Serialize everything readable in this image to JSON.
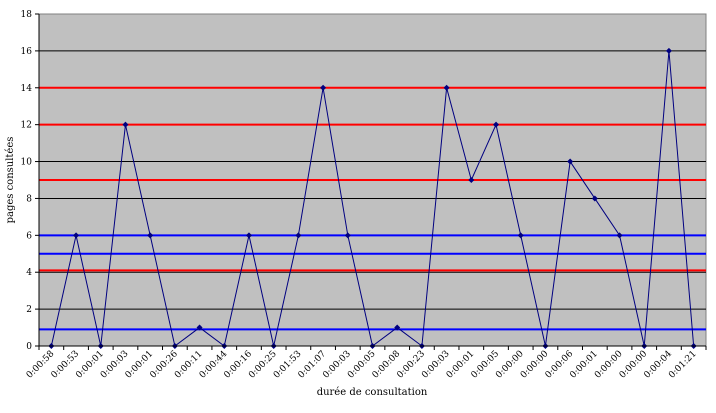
{
  "chart_data": {
    "type": "line",
    "xlabel": "durée de consultation",
    "ylabel": "pages consultées",
    "ylim": [
      0,
      18
    ],
    "yticks": [
      0,
      2,
      4,
      6,
      8,
      10,
      12,
      14,
      16,
      18
    ],
    "grid": true,
    "legend": "none",
    "categories": [
      "0:00:58",
      "0:00:53",
      "0:00:01",
      "0:00:03",
      "0:00:01",
      "0:00:26",
      "0:00:11",
      "0:00:44",
      "0:00:16",
      "0:00:25",
      "0:01:53",
      "0:01:07",
      "0:00:03",
      "0:00:05",
      "0:00:08",
      "0:00:23",
      "0:00:03",
      "0:00:01",
      "0:00:05",
      "0:00:00",
      "0:00:00",
      "0:00:06",
      "0:00:01",
      "0:00:00",
      "0:00:00",
      "0:00:04",
      "0:01:21"
    ],
    "series": [
      {
        "values": [
          0,
          6,
          0,
          12,
          6,
          0,
          1,
          0,
          6,
          0,
          6,
          14,
          6,
          0,
          1,
          0,
          14,
          9,
          12,
          6,
          0,
          10,
          8,
          6,
          0,
          16,
          0
        ]
      }
    ],
    "reference_lines": [
      {
        "value": 14,
        "color": "red"
      },
      {
        "value": 12,
        "color": "red"
      },
      {
        "value": 9,
        "color": "red"
      },
      {
        "value": 4.1,
        "color": "red"
      },
      {
        "value": 6,
        "color": "blue"
      },
      {
        "value": 5,
        "color": "blue"
      },
      {
        "value": 0.9,
        "color": "blue"
      }
    ]
  },
  "colors": {
    "plot_background": "#c0c0c0",
    "gridline": "#000000",
    "series": "#000080",
    "red_line": "#ff0000",
    "blue_line": "#0000ff"
  }
}
